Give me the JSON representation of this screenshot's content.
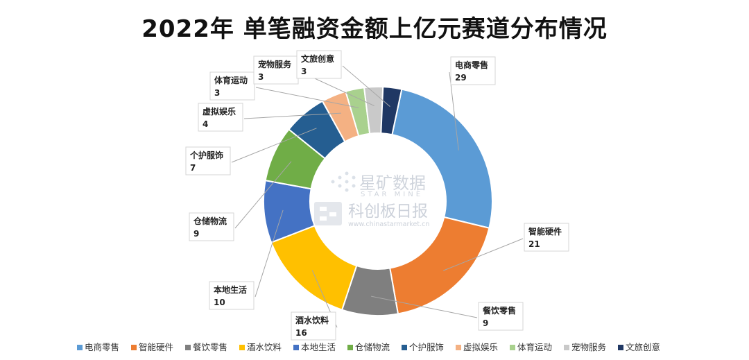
{
  "chart_data": {
    "type": "pie",
    "variant": "donut",
    "title": "2022年 单笔融资金额上亿元赛道分布情况",
    "categories": [
      "电商零售",
      "智能硬件",
      "餐饮零售",
      "酒水饮料",
      "本地生活",
      "仓储物流",
      "个护服饰",
      "虚拟娱乐",
      "体育运动",
      "宠物服务",
      "文旅创意"
    ],
    "values": [
      29,
      21,
      9,
      16,
      10,
      9,
      7,
      4,
      3,
      3,
      3
    ],
    "colors": [
      "#5b9bd5",
      "#ed7d31",
      "#7f7f7f",
      "#ffc000",
      "#4472c4",
      "#70ad47",
      "#255e91",
      "#f4b183",
      "#a9d18e",
      "#c9c9c9",
      "#203864"
    ],
    "legend_position": "bottom",
    "start_angle_deg": 12
  },
  "watermark": {
    "brand_cn": "星矿数据",
    "brand_en": "STAR MINE",
    "name_cn": "科创板日报",
    "url": "www.chinastarmarket.cn"
  }
}
